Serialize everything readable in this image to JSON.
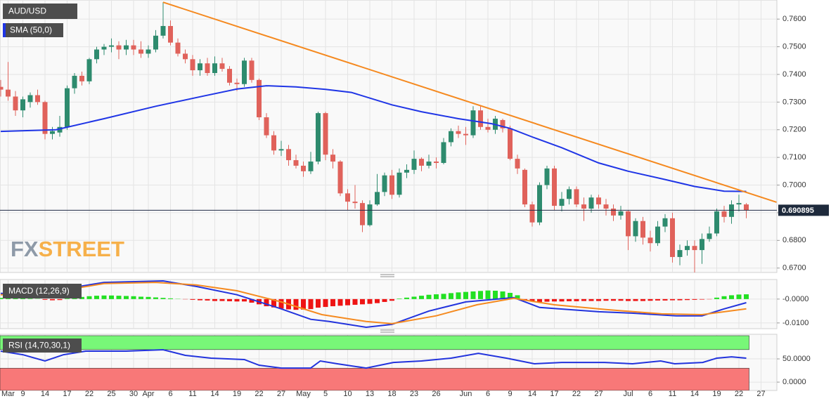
{
  "chart_data": [
    {
      "type": "candlestick",
      "title": "AUD/USD",
      "open": [
        0.7355,
        0.7345,
        0.732,
        0.727,
        0.73,
        0.7325,
        0.73,
        0.7185,
        0.719,
        0.721,
        0.735,
        0.7395,
        0.7375,
        0.7455,
        0.749,
        0.75,
        0.7505,
        0.749,
        0.7505,
        0.749,
        0.7475,
        0.749,
        0.754,
        0.7575,
        0.7515,
        0.7475,
        0.7455,
        0.7415,
        0.744,
        0.7405,
        0.744,
        0.742,
        0.737,
        0.7365,
        0.745,
        0.738,
        0.7245,
        0.718,
        0.7125,
        0.713,
        0.709,
        0.707,
        0.705,
        0.7085,
        0.726,
        0.711,
        0.7085,
        0.697,
        0.694,
        0.6935,
        0.6855,
        0.693,
        0.6975,
        0.7035,
        0.6965,
        0.7045,
        0.7055,
        0.7095,
        0.707,
        0.7085,
        0.708,
        0.7155,
        0.7195,
        0.7185,
        0.718,
        0.727,
        0.721,
        0.72,
        0.7235,
        0.7205,
        0.7095,
        0.7055,
        0.693,
        0.6865,
        0.7,
        0.706,
        0.6925,
        0.695,
        0.6985,
        0.693,
        0.6915,
        0.6955,
        0.693,
        0.6915,
        0.689,
        0.6905,
        0.6815,
        0.687,
        0.681,
        0.679,
        0.685,
        0.688,
        0.674,
        0.6765,
        0.678,
        0.6765,
        0.6805,
        0.6825,
        0.6905,
        0.6885,
        0.693,
        0.693,
        null,
        null
      ],
      "high": [
        0.738,
        0.7445,
        0.734,
        0.732,
        0.7335,
        0.7345,
        0.7305,
        0.721,
        0.725,
        0.736,
        0.7405,
        0.741,
        0.746,
        0.75,
        0.751,
        0.753,
        0.752,
        0.7525,
        0.7525,
        0.752,
        0.7505,
        0.756,
        0.7661,
        0.7595,
        0.753,
        0.749,
        0.747,
        0.7455,
        0.746,
        0.7465,
        0.746,
        0.743,
        0.7385,
        0.746,
        0.746,
        0.7385,
        0.726,
        0.7195,
        0.716,
        0.7145,
        0.711,
        0.7085,
        0.712,
        0.7265,
        0.7265,
        0.713,
        0.709,
        0.6985,
        0.7,
        0.6945,
        0.6945,
        0.704,
        0.7045,
        0.7055,
        0.706,
        0.7075,
        0.7125,
        0.71,
        0.711,
        0.71,
        0.717,
        0.7205,
        0.7215,
        0.721,
        0.7285,
        0.7285,
        0.724,
        0.725,
        0.724,
        0.7215,
        0.711,
        0.706,
        0.694,
        0.701,
        0.707,
        0.707,
        0.6975,
        0.6995,
        0.6995,
        0.6955,
        0.6965,
        0.6965,
        0.695,
        0.693,
        0.6925,
        0.691,
        0.688,
        0.6885,
        0.6835,
        0.687,
        0.6895,
        0.69,
        0.6785,
        0.68,
        0.68,
        0.6825,
        0.685,
        0.6915,
        0.6925,
        0.6945,
        0.6965,
        0.6935,
        null,
        null
      ],
      "low": [
        0.732,
        0.7305,
        0.725,
        0.7245,
        0.728,
        0.729,
        0.7165,
        0.7165,
        0.7175,
        0.72,
        0.733,
        0.736,
        0.7365,
        0.744,
        0.747,
        0.748,
        0.7455,
        0.747,
        0.747,
        0.746,
        0.746,
        0.748,
        0.753,
        0.7505,
        0.7465,
        0.744,
        0.7395,
        0.7395,
        0.7395,
        0.7395,
        0.741,
        0.736,
        0.734,
        0.7355,
        0.737,
        0.7235,
        0.717,
        0.711,
        0.7105,
        0.707,
        0.706,
        0.703,
        0.704,
        0.7075,
        0.709,
        0.706,
        0.696,
        0.691,
        0.6915,
        0.683,
        0.685,
        0.6925,
        0.696,
        0.695,
        0.6955,
        0.7025,
        0.704,
        0.705,
        0.706,
        0.706,
        0.7075,
        0.714,
        0.717,
        0.7145,
        0.717,
        0.72,
        0.719,
        0.7185,
        0.719,
        0.709,
        0.704,
        0.692,
        0.685,
        0.6855,
        0.6985,
        0.691,
        0.6905,
        0.693,
        0.692,
        0.687,
        0.69,
        0.6915,
        0.689,
        0.687,
        0.6875,
        0.6765,
        0.6795,
        0.6785,
        0.676,
        0.678,
        0.683,
        0.672,
        0.671,
        0.6745,
        0.6681,
        0.6715,
        0.6795,
        0.6815,
        0.6865,
        0.686,
        0.6905,
        0.688,
        null,
        null
      ],
      "close": [
        0.7345,
        0.732,
        0.727,
        0.731,
        0.7325,
        0.73,
        0.7185,
        0.7195,
        0.721,
        0.735,
        0.7395,
        0.7375,
        0.7455,
        0.749,
        0.75,
        0.7505,
        0.749,
        0.7505,
        0.749,
        0.7475,
        0.749,
        0.754,
        0.7575,
        0.7515,
        0.7475,
        0.7455,
        0.7415,
        0.744,
        0.7405,
        0.744,
        0.742,
        0.737,
        0.7365,
        0.745,
        0.738,
        0.7245,
        0.718,
        0.7125,
        0.713,
        0.709,
        0.707,
        0.705,
        0.7085,
        0.726,
        0.711,
        0.7085,
        0.697,
        0.694,
        0.6935,
        0.6855,
        0.693,
        0.6975,
        0.7035,
        0.6965,
        0.7045,
        0.7055,
        0.7095,
        0.707,
        0.7085,
        0.708,
        0.7155,
        0.7195,
        0.7185,
        0.718,
        0.727,
        0.721,
        0.72,
        0.724,
        0.7205,
        0.7095,
        0.706,
        0.693,
        0.6865,
        0.7,
        0.706,
        0.6925,
        0.695,
        0.6985,
        0.693,
        0.6915,
        0.6955,
        0.693,
        0.6915,
        0.689,
        0.6905,
        0.6815,
        0.687,
        0.681,
        0.679,
        0.685,
        0.688,
        0.674,
        0.6765,
        0.678,
        0.6765,
        0.6805,
        0.6825,
        0.6905,
        0.6885,
        0.693,
        0.6935,
        0.6909,
        null,
        null
      ],
      "up_color": "#2e8b6e",
      "down_color": "#e0625b",
      "sma": {
        "name": "SMA (50,0)",
        "color": "#1f35e6",
        "x": [
          0,
          7.5,
          14,
          21,
          27.5,
          32,
          36,
          40,
          44,
          47.5,
          53,
          57,
          62,
          66.5,
          69,
          72,
          76,
          81,
          85,
          90,
          94,
          98,
          101
        ],
        "values": [
          0.7194,
          0.72,
          0.724,
          0.7285,
          0.7322,
          0.7347,
          0.7359,
          0.7355,
          0.7346,
          0.7335,
          0.729,
          0.7265,
          0.724,
          0.7222,
          0.7205,
          0.7174,
          0.7135,
          0.708,
          0.705,
          0.702,
          0.6995,
          0.6978,
          0.6977
        ]
      },
      "trendline": {
        "color": "#f5891f",
        "x": [
          22,
          105.1
        ],
        "values": [
          0.7661,
          0.6938
        ]
      },
      "last_price": 0.690895,
      "watermark": {
        "prefix": "FX",
        "suffix": "STREET"
      },
      "ylim": [
        0.6684,
        0.7669
      ],
      "yticks": [
        {
          "value": 0.67,
          "label": "0.6700"
        },
        {
          "value": 0.68,
          "label": "0.6800"
        },
        {
          "value": 0.69,
          "label": "0.6900"
        },
        {
          "value": 0.7,
          "label": "0.7000"
        },
        {
          "value": 0.71,
          "label": "0.7100"
        },
        {
          "value": 0.72,
          "label": "0.7200"
        },
        {
          "value": 0.73,
          "label": "0.7300"
        },
        {
          "value": 0.74,
          "label": "0.7400"
        },
        {
          "value": 0.75,
          "label": "0.7500"
        },
        {
          "value": 0.76,
          "label": "0.7600"
        }
      ],
      "grid": true
    },
    {
      "type": "macd",
      "title": "MACD (12,26,9)",
      "histogram": {
        "up_color": "#22e022",
        "down_color": "#ee1414",
        "values": [
          0.0005,
          0.0006,
          0.0004,
          0.0003,
          0.0002,
          0.0001,
          -0.0003,
          -0.0005,
          -0.0004,
          0.0002,
          0.0006,
          0.0009,
          0.0012,
          0.0014,
          0.0015,
          0.0015,
          0.0014,
          0.0013,
          0.0012,
          0.001,
          0.0009,
          0.0007,
          0.0005,
          0.0003,
          0.0001,
          -0.0001,
          -0.0003,
          -0.0005,
          -0.0006,
          -0.0008,
          -0.0008,
          -0.0009,
          -0.001,
          -0.001,
          -0.0015,
          -0.0022,
          -0.003,
          -0.0035,
          -0.004,
          -0.0043,
          -0.0045,
          -0.0044,
          -0.0042,
          -0.0036,
          -0.0033,
          -0.003,
          -0.0028,
          -0.0026,
          -0.0024,
          -0.0022,
          -0.002,
          -0.0017,
          -0.0012,
          -0.0007,
          0.0002,
          0.0006,
          0.001,
          0.0014,
          0.0018,
          0.002,
          0.0022,
          0.0025,
          0.0028,
          0.003,
          0.0032,
          0.0034,
          0.0036,
          0.0035,
          0.0032,
          0.0026,
          0.0016,
          -0.0004,
          -0.001,
          -0.0012,
          -0.0011,
          -0.001,
          -0.001,
          -0.0009,
          -0.0009,
          -0.0008,
          -0.0008,
          -0.0008,
          -0.0007,
          -0.0007,
          -0.0007,
          -0.0008,
          -0.0008,
          -0.0008,
          -0.0007,
          -0.0006,
          -0.0006,
          -0.0005,
          -0.0005,
          -0.0004,
          -0.0003,
          -0.0002,
          -0.0001,
          0.0006,
          0.0012,
          0.0016,
          0.0019,
          0.002,
          null,
          null
        ]
      },
      "series": [
        {
          "color": "#2233dd",
          "x": [
            0,
            6,
            9.5,
            14,
            22,
            26.5,
            32,
            38,
            42,
            44.5,
            49.5,
            53,
            58,
            63,
            69.5,
            73,
            81,
            85.5,
            91.5,
            95,
            98,
            101
          ],
          "values": [
            0.0024,
            0.0018,
            0.0047,
            0.007,
            0.0076,
            0.0053,
            0.0018,
            -0.0041,
            -0.0085,
            -0.0094,
            -0.0118,
            -0.0106,
            -0.005,
            -0.0012,
            0.0006,
            -0.0035,
            -0.0053,
            -0.0059,
            -0.007,
            -0.007,
            -0.0041,
            -0.0015
          ]
        },
        {
          "color": "#f58a1f",
          "x": [
            0,
            7.5,
            14,
            21,
            26.5,
            32,
            38,
            43.5,
            49.5,
            53,
            59,
            64.5,
            69.5,
            75,
            82,
            89.5,
            95,
            101
          ],
          "values": [
            0.0018,
            0.0032,
            0.0065,
            0.007,
            0.0059,
            0.0035,
            -0.0012,
            -0.0065,
            -0.0094,
            -0.0103,
            -0.007,
            -0.0024,
            0.0003,
            -0.0024,
            -0.0044,
            -0.0062,
            -0.0065,
            -0.0041
          ]
        }
      ],
      "ylim": [
        -0.0124,
        0.0082
      ],
      "yticks": [
        {
          "value": 0,
          "label": "-0.0000"
        },
        {
          "value": -0.01,
          "label": "-0.0100"
        }
      ],
      "grid": true
    },
    {
      "type": "rsi",
      "title": "RSI (14,70,30,1)",
      "categories": [
        null,
        "Mar",
        null,
        "9",
        null,
        null,
        "14",
        null,
        null,
        "17",
        null,
        null,
        "22",
        null,
        null,
        "25",
        null,
        null,
        "30",
        null,
        "Apr",
        null,
        null,
        "6",
        null,
        null,
        "11",
        null,
        null,
        "14",
        null,
        null,
        "19",
        null,
        null,
        "22",
        null,
        null,
        "27",
        null,
        null,
        "May",
        null,
        null,
        "5",
        null,
        null,
        "10",
        null,
        null,
        "13",
        null,
        null,
        "18",
        null,
        null,
        "23",
        null,
        null,
        "26",
        null,
        null,
        null,
        "Jun",
        null,
        null,
        "6",
        null,
        null,
        "9",
        null,
        null,
        "14",
        null,
        null,
        "17",
        null,
        null,
        "22",
        null,
        null,
        "27",
        null,
        null,
        null,
        "Jul",
        null,
        null,
        "6",
        null,
        null,
        "11",
        null,
        null,
        "14",
        null,
        null,
        "19",
        null,
        null,
        "22",
        null,
        null,
        "27"
      ],
      "bands": [
        {
          "range": [
            70,
            100
          ],
          "color": "#78f778"
        },
        {
          "range": [
            -18,
            30
          ],
          "color": "#f87878"
        }
      ],
      "series": [
        {
          "color": "#2233dd",
          "x": [
            0,
            3,
            6,
            8.5,
            11.5,
            17,
            22,
            25,
            28.5,
            33,
            35,
            38,
            42,
            43.3,
            45.6,
            49.5,
            53.2,
            57,
            61,
            64.7,
            68.5,
            72.3,
            76,
            81.8,
            85.6,
            89.4,
            91.3,
            95.1,
            97,
            99,
            101
          ],
          "values": [
            66.7,
            59,
            45.5,
            59,
            66.7,
            66.7,
            69.7,
            57.6,
            51.5,
            48.5,
            36.4,
            30.3,
            30.3,
            45.5,
            39.4,
            30.3,
            42.4,
            45.5,
            51.5,
            62,
            51.5,
            39.4,
            42.4,
            42.4,
            39.4,
            45.5,
            39.4,
            42.4,
            51.5,
            54.5,
            51.5
          ]
        }
      ],
      "ylim": [
        -18,
        103
      ],
      "yticks": [
        {
          "value": 50,
          "label": "50.0000"
        },
        {
          "value": 0,
          "label": "0.0000"
        }
      ],
      "grid": true
    }
  ]
}
